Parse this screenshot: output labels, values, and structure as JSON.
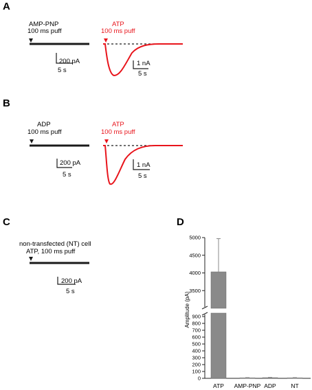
{
  "panels": {
    "A": {
      "letter": "A",
      "left": {
        "agent": "AMP-PNP",
        "puff": "100 ms puff",
        "scale_y": "200 pA",
        "scale_x": "5 s"
      },
      "right": {
        "agent": "ATP",
        "puff": "100 ms puff",
        "scale_y": "1 nA",
        "scale_x": "5 s"
      }
    },
    "B": {
      "letter": "B",
      "left": {
        "agent": "ADP",
        "puff": "100 ms puff",
        "scale_y": "200 pA",
        "scale_x": "5 s"
      },
      "right": {
        "agent": "ATP",
        "puff": "100 ms puff",
        "scale_y": "1 nA",
        "scale_x": "5 s"
      }
    },
    "C": {
      "letter": "C",
      "line1": "non-transfected (NT) cell",
      "line2": "ATP, 100 ms puff",
      "scale_y": "200 pA",
      "scale_x": "5 s"
    },
    "D": {
      "letter": "D"
    }
  },
  "colors": {
    "atp": "#e8141b",
    "trace": "#1a1a1a",
    "bar": "#8a8a8a"
  },
  "chart_data": {
    "type": "bar",
    "categories": [
      "ATP",
      "AMP-PNP",
      "ADP",
      "NT"
    ],
    "values": [
      4030,
      8,
      10,
      8
    ],
    "errors": [
      940,
      3,
      4,
      3
    ],
    "ylabel": "Amplitude (pA)",
    "xlabel": "",
    "y_axis_break": [
      950,
      3000
    ],
    "ylim": [
      0,
      5000
    ],
    "ticks_lower": [
      0,
      100,
      200,
      300,
      400,
      500,
      600,
      700,
      800,
      900
    ],
    "ticks_upper": [
      3500,
      4000,
      4500,
      5000
    ],
    "tick_labels_lower": [
      "0",
      "100",
      "200",
      "300",
      "400",
      "500",
      "600",
      "700",
      "800",
      "900"
    ],
    "tick_labels_upper": [
      "3500",
      "4000",
      "4500",
      "5000"
    ]
  }
}
